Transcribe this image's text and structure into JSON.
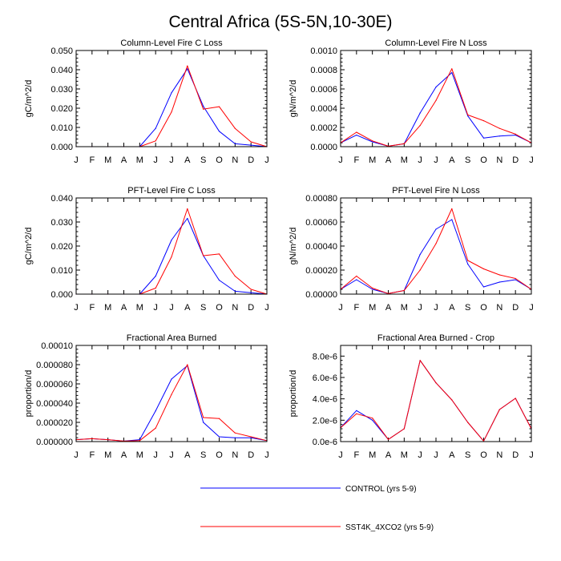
{
  "title": "Central Africa (5S-5N,10-30E)",
  "legend": {
    "placement": "bottom-center",
    "entries": [
      {
        "name": "CONTROL (yrs 5-9)",
        "color": "#0000ff"
      },
      {
        "name": "SST4K_4XCO2 (yrs 5-9)",
        "color": "#ff0000"
      }
    ]
  },
  "chart_data": [
    {
      "type": "line",
      "title": "Column-Level Fire C Loss",
      "xlabel": "",
      "ylabel": "gC/m^2/d",
      "categories": [
        "J",
        "F",
        "M",
        "A",
        "M",
        "J",
        "J",
        "A",
        "S",
        "O",
        "N",
        "D",
        "J"
      ],
      "ylim": [
        0,
        0.05
      ],
      "yticks": [
        "0.000",
        "0.010",
        "0.020",
        "0.030",
        "0.040",
        "0.050"
      ],
      "yticks_values": [
        0,
        0.01,
        0.02,
        0.03,
        0.04,
        0.05
      ],
      "series": [
        {
          "name": "CONTROL (yrs 5-9)",
          "color": "#0000ff",
          "values": [
            0,
            0,
            0,
            0,
            0,
            0.0095,
            0.028,
            0.0405,
            0.021,
            0.008,
            0.0015,
            0.0008,
            0
          ]
        },
        {
          "name": "SST4K_4XCO2 (yrs 5-9)",
          "color": "#ff0000",
          "values": [
            0,
            0,
            0,
            0,
            0,
            0.003,
            0.018,
            0.042,
            0.0195,
            0.0208,
            0.0095,
            0.0025,
            0
          ]
        }
      ]
    },
    {
      "type": "line",
      "title": "Column-Level Fire N Loss",
      "xlabel": "",
      "ylabel": "gN/m^2/d",
      "categories": [
        "J",
        "F",
        "M",
        "A",
        "M",
        "J",
        "J",
        "A",
        "S",
        "O",
        "N",
        "D",
        "J"
      ],
      "ylim": [
        0,
        0.001
      ],
      "yticks": [
        "0.0000",
        "0.0002",
        "0.0004",
        "0.0006",
        "0.0008",
        "0.0010"
      ],
      "yticks_values": [
        0,
        0.0002,
        0.0004,
        0.0006,
        0.0008,
        0.001
      ],
      "series": [
        {
          "name": "CONTROL (yrs 5-9)",
          "color": "#0000ff",
          "values": [
            4e-05,
            0.00012,
            5e-05,
            5e-06,
            3e-05,
            0.00035,
            0.00062,
            0.00077,
            0.00032,
            9e-05,
            0.00011,
            0.00012,
            4e-05
          ]
        },
        {
          "name": "SST4K_4XCO2 (yrs 5-9)",
          "color": "#ff0000",
          "values": [
            4e-05,
            0.00015,
            6e-05,
            5e-06,
            3e-05,
            0.00022,
            0.00048,
            0.00081,
            0.00033,
            0.00027,
            0.00019,
            0.00013,
            4e-05
          ]
        }
      ]
    },
    {
      "type": "line",
      "title": "PFT-Level Fire C Loss",
      "xlabel": "",
      "ylabel": "gC/m^2/d",
      "categories": [
        "J",
        "F",
        "M",
        "A",
        "M",
        "J",
        "J",
        "A",
        "S",
        "O",
        "N",
        "D",
        "J"
      ],
      "ylim": [
        0,
        0.04
      ],
      "yticks": [
        "0.000",
        "0.010",
        "0.020",
        "0.030",
        "0.040"
      ],
      "yticks_values": [
        0,
        0.01,
        0.02,
        0.03,
        0.04
      ],
      "series": [
        {
          "name": "CONTROL (yrs 5-9)",
          "color": "#0000ff",
          "values": [
            0,
            0,
            0,
            0,
            0,
            0.0075,
            0.0225,
            0.0315,
            0.016,
            0.0058,
            0.0012,
            0.0006,
            0
          ]
        },
        {
          "name": "SST4K_4XCO2 (yrs 5-9)",
          "color": "#ff0000",
          "values": [
            0,
            0,
            0,
            0,
            0,
            0.0025,
            0.0155,
            0.0355,
            0.016,
            0.0167,
            0.0075,
            0.002,
            0
          ]
        }
      ]
    },
    {
      "type": "line",
      "title": "PFT-Level Fire N Loss",
      "xlabel": "",
      "ylabel": "gN/m^2/d",
      "categories": [
        "J",
        "F",
        "M",
        "A",
        "M",
        "J",
        "J",
        "A",
        "S",
        "O",
        "N",
        "D",
        "J"
      ],
      "ylim": [
        0,
        0.0008
      ],
      "yticks": [
        "0.00000",
        "0.00020",
        "0.00040",
        "0.00060",
        "0.00080"
      ],
      "yticks_values": [
        0,
        0.0002,
        0.0004,
        0.0006,
        0.0008
      ],
      "series": [
        {
          "name": "CONTROL (yrs 5-9)",
          "color": "#0000ff",
          "values": [
            4e-05,
            0.00012,
            4e-05,
            5e-06,
            3e-05,
            0.00033,
            0.00054,
            0.00062,
            0.00025,
            6e-05,
            0.0001,
            0.00012,
            4e-05
          ]
        },
        {
          "name": "SST4K_4XCO2 (yrs 5-9)",
          "color": "#ff0000",
          "values": [
            4e-05,
            0.00015,
            5e-05,
            5e-06,
            3e-05,
            0.0002,
            0.00042,
            0.00071,
            0.00028,
            0.00021,
            0.00016,
            0.00013,
            4e-05
          ]
        }
      ]
    },
    {
      "type": "line",
      "title": "Fractional Area Burned",
      "xlabel": "",
      "ylabel": "proportion/d",
      "categories": [
        "J",
        "F",
        "M",
        "A",
        "M",
        "J",
        "J",
        "A",
        "S",
        "O",
        "N",
        "D",
        "J"
      ],
      "ylim": [
        0,
        0.0001
      ],
      "yticks": [
        "0.000000",
        "0.000020",
        "0.000040",
        "0.000060",
        "0.000080",
        "0.00010"
      ],
      "yticks_values": [
        0,
        2e-05,
        4e-05,
        6e-05,
        8e-05,
        0.0001
      ],
      "series": [
        {
          "name": "CONTROL (yrs 5-9)",
          "color": "#0000ff",
          "values": [
            2e-06,
            3e-06,
            2e-06,
            5e-07,
            2e-06,
            3.2e-05,
            6.5e-05,
            7.9e-05,
            2e-05,
            5e-06,
            4e-06,
            4e-06,
            1e-06
          ]
        },
        {
          "name": "SST4K_4XCO2 (yrs 5-9)",
          "color": "#ff0000",
          "values": [
            2e-06,
            3e-06,
            2e-06,
            5e-07,
            1e-06,
            1.4e-05,
            4.9e-05,
            8e-05,
            2.5e-05,
            2.4e-05,
            9e-06,
            5e-06,
            1e-06
          ]
        }
      ]
    },
    {
      "type": "line",
      "title": "Fractional Area Burned - Crop",
      "xlabel": "",
      "ylabel": "proportion/d",
      "categories": [
        "J",
        "F",
        "M",
        "A",
        "M",
        "J",
        "J",
        "A",
        "S",
        "O",
        "N",
        "D",
        "J"
      ],
      "ylim": [
        0,
        9e-06
      ],
      "yticks": [
        "0.0e-6",
        "2.0e-6",
        "4.0e-6",
        "6.0e-6",
        "8.0e-6"
      ],
      "yticks_values": [
        0,
        2e-06,
        4e-06,
        6e-06,
        8e-06
      ],
      "series": [
        {
          "name": "CONTROL (yrs 5-9)",
          "color": "#0000ff",
          "values": [
            1.3e-06,
            2.9e-06,
            2e-06,
            2e-07,
            1.2e-06,
            7.6e-06,
            5.5e-06,
            3.9e-06,
            1.8e-06,
            5e-08,
            3e-06,
            4.05e-06,
            1.2e-06
          ]
        },
        {
          "name": "SST4K_4XCO2 (yrs 5-9)",
          "color": "#ff0000",
          "values": [
            1.3e-06,
            2.6e-06,
            2.2e-06,
            2e-07,
            1.2e-06,
            7.6e-06,
            5.5e-06,
            3.9e-06,
            1.8e-06,
            5e-08,
            3e-06,
            4.05e-06,
            1.2e-06
          ]
        }
      ]
    }
  ]
}
